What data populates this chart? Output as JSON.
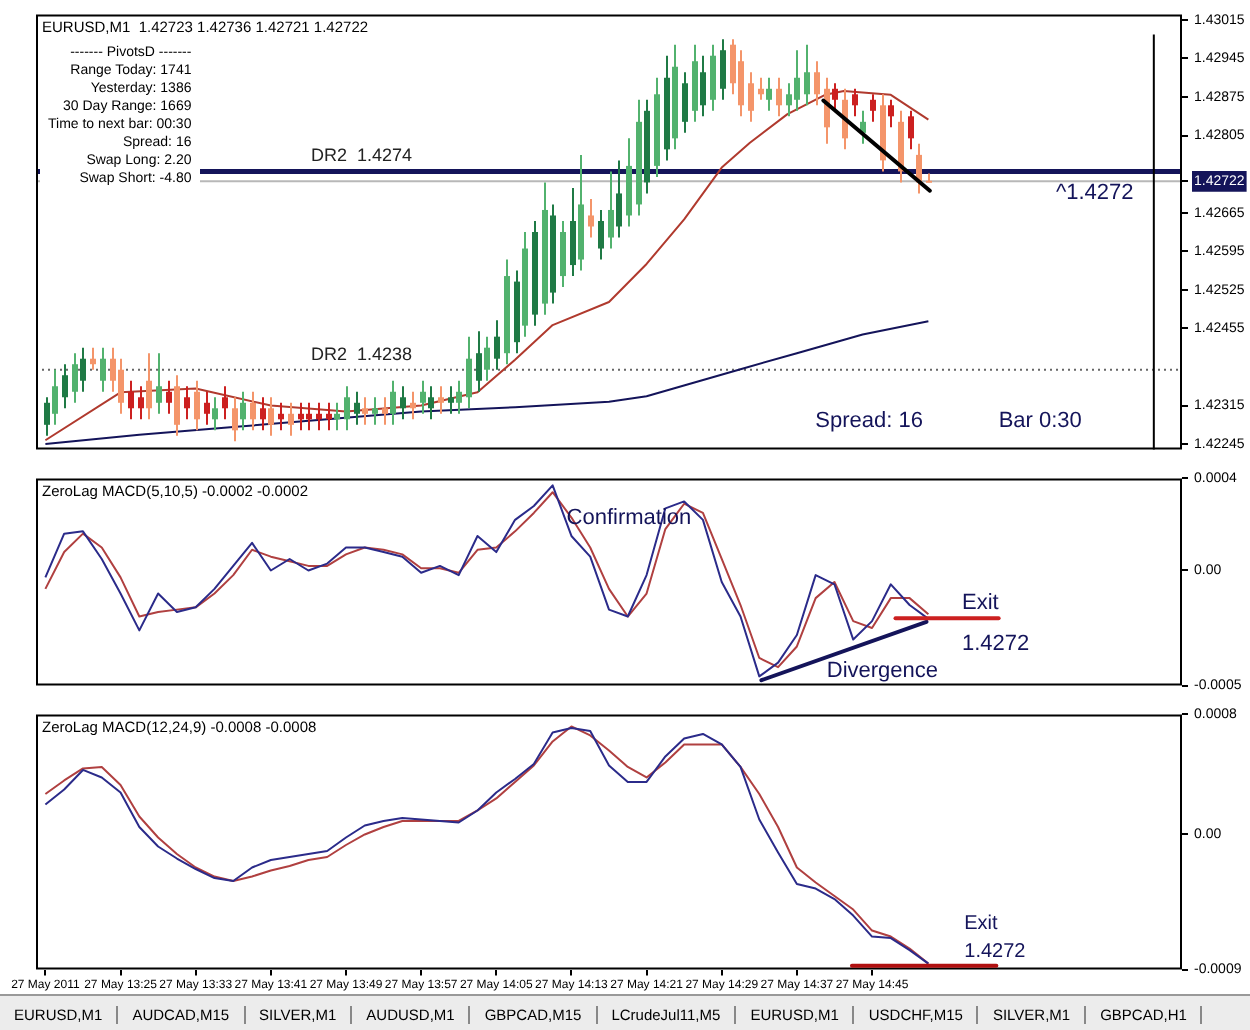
{
  "chart_data": [
    {
      "type": "candlestick",
      "title": "EURUSD,M1  1.42723 1.42736 1.42721 1.42722",
      "x": [
        "2011-05-27T13:17",
        "2011-05-27T13:18",
        "2011-05-27T13:19",
        "2011-05-27T13:20",
        "2011-05-27T13:21",
        "2011-05-27T13:22",
        "2011-05-27T13:23",
        "2011-05-27T13:24",
        "2011-05-27T13:25",
        "2011-05-27T13:26",
        "2011-05-27T13:27",
        "2011-05-27T13:28",
        "2011-05-27T13:29",
        "2011-05-27T13:30",
        "2011-05-27T13:31",
        "2011-05-27T13:32",
        "2011-05-27T13:33",
        "2011-05-27T13:34",
        "2011-05-27T13:35",
        "2011-05-27T13:36",
        "2011-05-27T13:37",
        "2011-05-27T13:38",
        "2011-05-27T13:39",
        "2011-05-27T13:40",
        "2011-05-27T13:41",
        "2011-05-27T13:42",
        "2011-05-27T13:43",
        "2011-05-27T13:44",
        "2011-05-27T13:45",
        "2011-05-27T13:46",
        "2011-05-27T13:47",
        "2011-05-27T13:48",
        "2011-05-27T13:49",
        "2011-05-27T13:50",
        "2011-05-27T13:51",
        "2011-05-27T13:52",
        "2011-05-27T13:53",
        "2011-05-27T13:54",
        "2011-05-27T13:55",
        "2011-05-27T13:56",
        "2011-05-27T13:57",
        "2011-05-27T13:58",
        "2011-05-27T13:59",
        "2011-05-27T14:00",
        "2011-05-27T14:01",
        "2011-05-27T14:02",
        "2011-05-27T14:03",
        "2011-05-27T14:04",
        "2011-05-27T14:05",
        "2011-05-27T14:06",
        "2011-05-27T14:07",
        "2011-05-27T14:08",
        "2011-05-27T14:09",
        "2011-05-27T14:10",
        "2011-05-27T14:11",
        "2011-05-27T14:12",
        "2011-05-27T14:13",
        "2011-05-27T14:14",
        "2011-05-27T14:15",
        "2011-05-27T14:16",
        "2011-05-27T14:17",
        "2011-05-27T14:18",
        "2011-05-27T14:19",
        "2011-05-27T14:20",
        "2011-05-27T14:21",
        "2011-05-27T14:22",
        "2011-05-27T14:23",
        "2011-05-27T14:24",
        "2011-05-27T14:25",
        "2011-05-27T14:26",
        "2011-05-27T14:27",
        "2011-05-27T14:28",
        "2011-05-27T14:29",
        "2011-05-27T14:30",
        "2011-05-27T14:31",
        "2011-05-27T14:32",
        "2011-05-27T14:33",
        "2011-05-27T14:34",
        "2011-05-27T14:35",
        "2011-05-27T14:36",
        "2011-05-27T14:37",
        "2011-05-27T14:38",
        "2011-05-27T14:39",
        "2011-05-27T14:40",
        "2011-05-27T14:41",
        "2011-05-27T14:42",
        "2011-05-27T14:43",
        "2011-05-27T14:44",
        "2011-05-27T14:45",
        "2011-05-27T14:46",
        "2011-05-27T14:47",
        "2011-05-27T14:48",
        "2011-05-27T14:49",
        "2011-05-27T14:50",
        "2011-05-27T14:51"
      ],
      "ohlc": [
        [
          1.4228,
          1.4233,
          1.4226,
          1.4232
        ],
        [
          1.423,
          1.4238,
          1.4228,
          1.4235
        ],
        [
          1.4233,
          1.4239,
          1.4231,
          1.4237
        ],
        [
          1.4234,
          1.4241,
          1.4232,
          1.4239
        ],
        [
          1.4236,
          1.4242,
          1.4234,
          1.424
        ],
        [
          1.424,
          1.4242,
          1.4238,
          1.4239
        ],
        [
          1.4236,
          1.4242,
          1.4234,
          1.424
        ],
        [
          1.424,
          1.4242,
          1.4234,
          1.4236
        ],
        [
          1.4238,
          1.424,
          1.423,
          1.4232
        ],
        [
          1.4234,
          1.4236,
          1.4229,
          1.4231
        ],
        [
          1.4233,
          1.4235,
          1.4229,
          1.4231
        ],
        [
          1.4236,
          1.4241,
          1.4229,
          1.4231
        ],
        [
          1.4232,
          1.4241,
          1.423,
          1.4235
        ],
        [
          1.4234,
          1.4236,
          1.423,
          1.4232
        ],
        [
          1.4235,
          1.4237,
          1.4226,
          1.4228
        ],
        [
          1.4233,
          1.4235,
          1.4229,
          1.4231
        ],
        [
          1.4234,
          1.4236,
          1.4227,
          1.4229
        ],
        [
          1.4232,
          1.4234,
          1.4228,
          1.423
        ],
        [
          1.4229,
          1.4233,
          1.4227,
          1.4231
        ],
        [
          1.4233,
          1.4235,
          1.4229,
          1.4231
        ],
        [
          1.4231,
          1.4233,
          1.4225,
          1.4227
        ],
        [
          1.4229,
          1.4234,
          1.4227,
          1.4232
        ],
        [
          1.4232,
          1.4234,
          1.4227,
          1.4229
        ],
        [
          1.4231,
          1.4233,
          1.4227,
          1.4229
        ],
        [
          1.4231,
          1.4233,
          1.4226,
          1.4228
        ],
        [
          1.423,
          1.4232,
          1.4227,
          1.4229
        ],
        [
          1.423,
          1.4232,
          1.4226,
          1.4228
        ],
        [
          1.423,
          1.4232,
          1.4227,
          1.4229
        ],
        [
          1.423,
          1.4232,
          1.4227,
          1.4229
        ],
        [
          1.423,
          1.4232,
          1.4227,
          1.4229
        ],
        [
          1.423,
          1.4232,
          1.4227,
          1.4229
        ],
        [
          1.4229,
          1.4232,
          1.4227,
          1.423
        ],
        [
          1.4229,
          1.4235,
          1.4227,
          1.4233
        ],
        [
          1.423,
          1.4234,
          1.4228,
          1.4232
        ],
        [
          1.4231,
          1.4233,
          1.4228,
          1.423
        ],
        [
          1.423,
          1.4233,
          1.4228,
          1.4231
        ],
        [
          1.4231,
          1.4233,
          1.4228,
          1.423
        ],
        [
          1.423,
          1.4236,
          1.4228,
          1.4234
        ],
        [
          1.4231,
          1.4235,
          1.4229,
          1.4233
        ],
        [
          1.4232,
          1.4234,
          1.4229,
          1.4231
        ],
        [
          1.4232,
          1.4236,
          1.423,
          1.4234
        ],
        [
          1.4231,
          1.4235,
          1.4229,
          1.4233
        ],
        [
          1.4233,
          1.4235,
          1.423,
          1.4232
        ],
        [
          1.4232,
          1.4235,
          1.423,
          1.4233
        ],
        [
          1.4232,
          1.4236,
          1.423,
          1.4234
        ],
        [
          1.4233,
          1.4244,
          1.4231,
          1.424
        ],
        [
          1.4236,
          1.4245,
          1.4234,
          1.4241
        ],
        [
          1.4238,
          1.4244,
          1.4236,
          1.4242
        ],
        [
          1.424,
          1.4247,
          1.4238,
          1.4244
        ],
        [
          1.4241,
          1.4258,
          1.4239,
          1.4255
        ],
        [
          1.4243,
          1.4256,
          1.4241,
          1.4254
        ],
        [
          1.4246,
          1.4263,
          1.4244,
          1.426
        ],
        [
          1.4248,
          1.4265,
          1.4246,
          1.4263
        ],
        [
          1.425,
          1.4272,
          1.4248,
          1.4267
        ],
        [
          1.4252,
          1.4268,
          1.425,
          1.4266
        ],
        [
          1.4255,
          1.4265,
          1.4253,
          1.4263
        ],
        [
          1.4257,
          1.4271,
          1.4255,
          1.4265
        ],
        [
          1.4258,
          1.4277,
          1.4256,
          1.4268
        ],
        [
          1.4266,
          1.4269,
          1.4262,
          1.4264
        ],
        [
          1.426,
          1.4267,
          1.4258,
          1.4265
        ],
        [
          1.4262,
          1.4274,
          1.426,
          1.4267
        ],
        [
          1.4264,
          1.4276,
          1.4262,
          1.427
        ],
        [
          1.4266,
          1.428,
          1.4264,
          1.4275
        ],
        [
          1.4268,
          1.4287,
          1.4266,
          1.4283
        ],
        [
          1.4272,
          1.4287,
          1.427,
          1.4285
        ],
        [
          1.4275,
          1.4291,
          1.4273,
          1.4288
        ],
        [
          1.4278,
          1.4295,
          1.4276,
          1.4291
        ],
        [
          1.428,
          1.4297,
          1.4278,
          1.4293
        ],
        [
          1.4283,
          1.4292,
          1.4281,
          1.429
        ],
        [
          1.4285,
          1.4297,
          1.4283,
          1.4294
        ],
        [
          1.4286,
          1.4295,
          1.4284,
          1.4292
        ],
        [
          1.4287,
          1.4297,
          1.4285,
          1.4295
        ],
        [
          1.4289,
          1.4298,
          1.4287,
          1.4296
        ],
        [
          1.4297,
          1.4298,
          1.4288,
          1.429
        ],
        [
          1.4294,
          1.4296,
          1.4284,
          1.4286
        ],
        [
          1.429,
          1.4292,
          1.4283,
          1.4285
        ],
        [
          1.4289,
          1.4291,
          1.4287,
          1.4288
        ],
        [
          1.4287,
          1.4291,
          1.4285,
          1.4289
        ],
        [
          1.4289,
          1.4291,
          1.4284,
          1.4286
        ],
        [
          1.4286,
          1.429,
          1.4284,
          1.4288
        ],
        [
          1.4287,
          1.4296,
          1.4285,
          1.4291
        ],
        [
          1.4288,
          1.4297,
          1.4286,
          1.4292
        ],
        [
          1.4292,
          1.4294,
          1.4286,
          1.4288
        ],
        [
          1.4289,
          1.4291,
          1.4279,
          1.4282
        ],
        [
          1.4289,
          1.429,
          1.4285,
          1.4287
        ],
        [
          1.4287,
          1.4289,
          1.4278,
          1.428
        ],
        [
          1.4288,
          1.4289,
          1.4284,
          1.4286
        ],
        [
          1.4281,
          1.4285,
          1.4279,
          1.4283
        ],
        [
          1.4287,
          1.4288,
          1.4283,
          1.4285
        ],
        [
          1.4286,
          1.4288,
          1.4274,
          1.4276
        ],
        [
          1.4286,
          1.4287,
          1.4282,
          1.4284
        ],
        [
          1.4283,
          1.4285,
          1.4272,
          1.4274
        ],
        [
          1.4284,
          1.4285,
          1.4278,
          1.428
        ],
        [
          1.4277,
          1.4279,
          1.427,
          1.4272
        ],
        [
          1.42723,
          1.42736,
          1.42721,
          1.42722
        ]
      ],
      "colors": [
        "#1f7a45",
        "#52b26e",
        "#1f7a45",
        "#52b26e",
        "#1f7a45",
        "#f4956a",
        "#52b26e",
        "#f4956a",
        "#f4956a",
        "#cc2020",
        "#cc2020",
        "#f4956a",
        "#52b26e",
        "#cc2020",
        "#f4956a",
        "#cc2020",
        "#f4956a",
        "#cc2020",
        "#52b26e",
        "#cc2020",
        "#f4956a",
        "#52b26e",
        "#f4956a",
        "#cc2020",
        "#f4956a",
        "#cc2020",
        "#f4956a",
        "#cc2020",
        "#cc2020",
        "#cc2020",
        "#cc2020",
        "#52b26e",
        "#52b26e",
        "#1f7a45",
        "#f4956a",
        "#52b26e",
        "#f4956a",
        "#52b26e",
        "#1f7a45",
        "#f4956a",
        "#52b26e",
        "#1f7a45",
        "#f4956a",
        "#1f7a45",
        "#52b26e",
        "#52b26e",
        "#1f7a45",
        "#52b26e",
        "#1f7a45",
        "#52b26e",
        "#1f7a45",
        "#52b26e",
        "#1f7a45",
        "#52b26e",
        "#1f7a45",
        "#52b26e",
        "#1f7a45",
        "#52b26e",
        "#f4956a",
        "#1f7a45",
        "#52b26e",
        "#1f7a45",
        "#52b26e",
        "#52b26e",
        "#1f7a45",
        "#52b26e",
        "#1f7a45",
        "#52b26e",
        "#1f7a45",
        "#52b26e",
        "#1f7a45",
        "#52b26e",
        "#1f7a45",
        "#f4956a",
        "#f4956a",
        "#f4956a",
        "#f4956a",
        "#52b26e",
        "#f4956a",
        "#52b26e",
        "#52b26e",
        "#52b26e",
        "#f4956a",
        "#f4956a",
        "#cc2020",
        "#f4956a",
        "#cc2020",
        "#52b26e",
        "#cc2020",
        "#f4956a",
        "#cc2020",
        "#f4956a",
        "#cc2020",
        "#f4956a",
        "#f4956a"
      ],
      "series": [
        {
          "type": "line",
          "color": "#b03a2e",
          "x": [
            "2011-05-27T13:17",
            "2011-05-27T13:25",
            "2011-05-27T13:33",
            "2011-05-27T13:41",
            "2011-05-27T13:49",
            "2011-05-27T13:57",
            "2011-05-27T14:03",
            "2011-05-27T14:07",
            "2011-05-27T14:11",
            "2011-05-27T14:17",
            "2011-05-27T14:21",
            "2011-05-27T14:25",
            "2011-05-27T14:29",
            "2011-05-27T14:32",
            "2011-05-27T14:36",
            "2011-05-27T14:40",
            "2011-05-27T14:42",
            "2011-05-27T14:47",
            "2011-05-27T14:51"
          ],
          "values": [
            1.42252,
            1.42339,
            1.42346,
            1.42315,
            1.42304,
            1.42315,
            1.42339,
            1.42398,
            1.42461,
            1.42503,
            1.42572,
            1.42653,
            1.42747,
            1.42792,
            1.42844,
            1.42879,
            1.42886,
            1.42879,
            1.42834
          ]
        },
        {
          "type": "line",
          "color": "#14145a",
          "x": [
            "2011-05-27T13:17",
            "2011-05-27T13:27",
            "2011-05-27T13:37",
            "2011-05-27T13:47",
            "2011-05-27T13:57",
            "2011-05-27T14:07",
            "2011-05-27T14:17",
            "2011-05-27T14:21",
            "2011-05-27T14:31",
            "2011-05-27T14:37",
            "2011-05-27T14:44",
            "2011-05-27T14:51"
          ],
          "values": [
            1.42245,
            1.42262,
            1.42276,
            1.4229,
            1.42304,
            1.42312,
            1.42322,
            1.42332,
            1.42381,
            1.4241,
            1.42444,
            1.42468
          ]
        }
      ],
      "xlim": [
        "2011-05-27T13:16",
        "2011-05-27T15:18"
      ],
      "ylim": [
        1.42235,
        1.43025
      ],
      "yticks": [
        1.43015,
        1.42945,
        1.42875,
        1.42805,
        1.42722,
        1.42665,
        1.42595,
        1.42525,
        1.42455,
        1.42315,
        1.42245
      ],
      "tick_labels": "y",
      "ref_lines": [
        {
          "axis": "y",
          "value": 1.4274,
          "label": "DR2  1.4274",
          "color": "#14145a"
        },
        {
          "axis": "y",
          "value": 1.42722,
          "color": "#b8b8b8"
        },
        {
          "axis": "y",
          "value": 1.4238,
          "label": "DR2  1.4238",
          "color": "#666666",
          "line_style": "dotted"
        },
        {
          "axis": "x",
          "value": "2011-05-27T15:15",
          "color": "#000000"
        }
      ],
      "annotations": [
        "------- PivotsD -------",
        "Range Today:  1741",
        "Yesterday:  1386",
        "30 Day Range:  1669",
        "Time to next bar:  00:30",
        "Spread:  16",
        "Swap Long:  2.20",
        "Swap Short:  -4.80",
        "^1.4272",
        "Spread: 16",
        "Bar 0:30"
      ]
    },
    {
      "type": "line",
      "title": "ZeroLag MACD(5,10,5) -0.0002 -0.0002",
      "x": [
        "2011-05-27T13:17",
        "2011-05-27T13:19",
        "2011-05-27T13:21",
        "2011-05-27T13:23",
        "2011-05-27T13:25",
        "2011-05-27T13:27",
        "2011-05-27T13:29",
        "2011-05-27T13:31",
        "2011-05-27T13:33",
        "2011-05-27T13:35",
        "2011-05-27T13:37",
        "2011-05-27T13:39",
        "2011-05-27T13:41",
        "2011-05-27T13:43",
        "2011-05-27T13:45",
        "2011-05-27T13:47",
        "2011-05-27T13:49",
        "2011-05-27T13:51",
        "2011-05-27T13:53",
        "2011-05-27T13:55",
        "2011-05-27T13:57",
        "2011-05-27T13:59",
        "2011-05-27T14:01",
        "2011-05-27T14:03",
        "2011-05-27T14:05",
        "2011-05-27T14:07",
        "2011-05-27T14:09",
        "2011-05-27T14:11",
        "2011-05-27T14:13",
        "2011-05-27T14:15",
        "2011-05-27T14:17",
        "2011-05-27T14:19",
        "2011-05-27T14:21",
        "2011-05-27T14:23",
        "2011-05-27T14:25",
        "2011-05-27T14:27",
        "2011-05-27T14:29",
        "2011-05-27T14:31",
        "2011-05-27T14:33",
        "2011-05-27T14:35",
        "2011-05-27T14:37",
        "2011-05-27T14:39",
        "2011-05-27T14:41",
        "2011-05-27T14:43",
        "2011-05-27T14:45",
        "2011-05-27T14:47",
        "2011-05-27T14:49",
        "2011-05-27T14:51"
      ],
      "series": [
        {
          "color": "#2b2b8a",
          "values": [
            -3e-05,
            0.00016,
            0.00017,
            5e-05,
            -0.0001,
            -0.00026,
            -0.0001,
            -0.00018,
            -0.00016,
            -8e-05,
            2e-05,
            0.00012,
            0.0,
            5e-05,
            0.0,
            3e-05,
            0.0001,
            0.0001,
            8e-05,
            6e-05,
            -1e-05,
            2e-05,
            -2e-05,
            0.00015,
            8e-05,
            0.00022,
            0.00028,
            0.00037,
            0.00015,
            6e-05,
            -0.00017,
            -0.0002,
            -2e-05,
            0.00027,
            0.0003,
            0.00022,
            -5e-05,
            -0.0002,
            -0.00046,
            -0.0004,
            -0.00028,
            -2e-05,
            -6e-05,
            -0.0003,
            -0.00022,
            -6e-05,
            -0.00015,
            -0.00021
          ]
        },
        {
          "color": "#b04040",
          "values": [
            -8e-05,
            8e-05,
            0.00016,
            0.0001,
            -3e-05,
            -0.0002,
            -0.00018,
            -0.00017,
            -0.00016,
            -0.0001,
            -2e-05,
            9e-05,
            6e-05,
            4e-05,
            2e-05,
            2e-05,
            7e-05,
            0.0001,
            9e-05,
            7e-05,
            1e-05,
            1e-05,
            -1e-05,
            9e-05,
            0.0001,
            0.00017,
            0.00025,
            0.00034,
            0.00023,
            0.0001,
            -8e-05,
            -0.0002,
            -0.0001,
            0.00018,
            0.00029,
            0.00025,
            5e-05,
            -0.00015,
            -0.00038,
            -0.00042,
            -0.00033,
            -0.00012,
            -5e-05,
            -0.00022,
            -0.00025,
            -0.00012,
            -0.00012,
            -0.00019
          ]
        }
      ],
      "xlim": [
        "2011-05-27T13:16",
        "2011-05-27T15:18"
      ],
      "ylim": [
        -0.0005,
        0.0004
      ],
      "yticks": [
        0.0004,
        {
          "value": 0,
          "label": "0.00"
        },
        -0.0005
      ],
      "tick_labels": "y",
      "annotations": [
        "Confirmation",
        "Divergence",
        "Exit",
        "1.4272"
      ]
    },
    {
      "type": "line",
      "title": "ZeroLag MACD(12,24,9) -0.0008 -0.0008",
      "x": [
        "2011-05-27T13:17",
        "2011-05-27T13:19",
        "2011-05-27T13:21",
        "2011-05-27T13:23",
        "2011-05-27T13:25",
        "2011-05-27T13:27",
        "2011-05-27T13:29",
        "2011-05-27T13:31",
        "2011-05-27T13:33",
        "2011-05-27T13:35",
        "2011-05-27T13:37",
        "2011-05-27T13:39",
        "2011-05-27T13:41",
        "2011-05-27T13:43",
        "2011-05-27T13:45",
        "2011-05-27T13:47",
        "2011-05-27T13:49",
        "2011-05-27T13:51",
        "2011-05-27T13:53",
        "2011-05-27T13:55",
        "2011-05-27T13:57",
        "2011-05-27T13:59",
        "2011-05-27T14:01",
        "2011-05-27T14:03",
        "2011-05-27T14:05",
        "2011-05-27T14:07",
        "2011-05-27T14:09",
        "2011-05-27T14:11",
        "2011-05-27T14:13",
        "2011-05-27T14:15",
        "2011-05-27T14:17",
        "2011-05-27T14:19",
        "2011-05-27T14:21",
        "2011-05-27T14:23",
        "2011-05-27T14:25",
        "2011-05-27T14:27",
        "2011-05-27T14:29",
        "2011-05-27T14:31",
        "2011-05-27T14:33",
        "2011-05-27T14:35",
        "2011-05-27T14:37",
        "2011-05-27T14:39",
        "2011-05-27T14:41",
        "2011-05-27T14:43",
        "2011-05-27T14:45",
        "2011-05-27T14:47",
        "2011-05-27T14:49",
        "2011-05-27T14:51"
      ],
      "series": [
        {
          "color": "#2b2b8a",
          "values": [
            0.0002,
            0.0003,
            0.00043,
            0.00038,
            0.00028,
            5e-05,
            -8e-05,
            -0.00016,
            -0.00023,
            -0.00029,
            -0.00031,
            -0.00022,
            -0.00017,
            -0.00015,
            -0.00013,
            -0.00011,
            -2e-05,
            6e-05,
            9e-05,
            0.00011,
            0.0001,
            9e-05,
            8e-05,
            0.00016,
            0.00028,
            0.00037,
            0.00047,
            0.00068,
            0.00071,
            0.00069,
            0.00046,
            0.00035,
            0.00035,
            0.00052,
            0.00064,
            0.00067,
            0.0006,
            0.00045,
            0.0001,
            -0.00012,
            -0.00033,
            -0.00036,
            -0.00043,
            -0.00054,
            -0.00068,
            -0.00069,
            -0.00077,
            -0.00086
          ]
        },
        {
          "color": "#b04040",
          "values": [
            0.00027,
            0.00036,
            0.00044,
            0.00045,
            0.00033,
            0.00012,
            -2e-05,
            -0.00013,
            -0.00022,
            -0.00028,
            -0.00031,
            -0.00028,
            -0.00024,
            -0.00021,
            -0.00017,
            -0.00015,
            -7e-05,
            0.0,
            5e-05,
            9e-05,
            9e-05,
            9e-05,
            9e-05,
            0.00016,
            0.00024,
            0.00035,
            0.00046,
            0.00062,
            0.00072,
            0.00066,
            0.00056,
            0.00045,
            0.00038,
            0.00048,
            0.0006,
            0.0006,
            0.0006,
            0.00045,
            0.00027,
            5e-05,
            -0.00022,
            -0.00032,
            -0.00041,
            -0.0005,
            -0.00064,
            -0.00068,
            -0.00076,
            -0.00086
          ]
        }
      ],
      "xlim": [
        "2011-05-27T13:16",
        "2011-05-27T15:18"
      ],
      "xticks": [
        {
          "value": "2011-05-27T13:17",
          "label": "27 May 2011"
        },
        {
          "value": "2011-05-27T13:25",
          "label": "27 May 13:25"
        },
        {
          "value": "2011-05-27T13:33",
          "label": "27 May 13:33"
        },
        {
          "value": "2011-05-27T13:41",
          "label": "27 May 13:41"
        },
        {
          "value": "2011-05-27T13:49",
          "label": "27 May 13:49"
        },
        {
          "value": "2011-05-27T13:57",
          "label": "27 May 13:57"
        },
        {
          "value": "2011-05-27T14:05",
          "label": "27 May 14:05"
        },
        {
          "value": "2011-05-27T14:13",
          "label": "27 May 14:13"
        },
        {
          "value": "2011-05-27T14:21",
          "label": "27 May 14:21"
        },
        {
          "value": "2011-05-27T14:29",
          "label": "27 May 14:29"
        },
        {
          "value": "2011-05-27T14:37",
          "label": "27 May 14:37"
        },
        {
          "value": "2011-05-27T14:45",
          "label": "27 May 14:45"
        }
      ],
      "ylim": [
        -0.0009,
        0.0008
      ],
      "yticks": [
        0.0008,
        {
          "value": 0,
          "label": "0.00"
        },
        -0.0009
      ],
      "annotations": [
        "Exit",
        "1.4272",
        "EURUSD,M1",
        "AUDCAD,M15",
        "SILVER,M1",
        "AUDUSD,M1",
        "GBPCAD,M15",
        "LCrudeJul11,M5",
        "EURUSD,M1",
        "USDCHF,M15",
        "SILVER,M1",
        "GBPCAD,H1"
      ]
    }
  ]
}
